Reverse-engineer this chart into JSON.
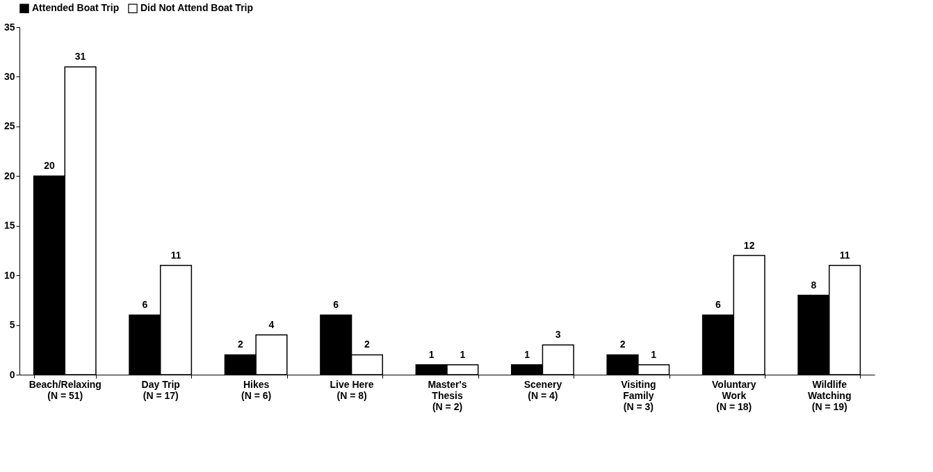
{
  "chart_data": {
    "type": "bar",
    "categories": [
      "Beach/Relaxing\n(N = 51)",
      "Day Trip\n(N = 17)",
      "Hikes\n(N = 6)",
      "Live Here\n(N = 8)",
      "Master's\nThesis\n(N = 2)",
      "Scenery\n(N = 4)",
      "Visiting\nFamily\n(N = 3)",
      "Voluntary\nWork\n(N = 18)",
      "Wildlife\nWatching\n(N = 19)"
    ],
    "series": [
      {
        "name": "Attended Boat Trip",
        "color": "#000000",
        "values": [
          20,
          6,
          2,
          6,
          1,
          1,
          2,
          6,
          8
        ]
      },
      {
        "name": "Did Not Attend Boat Trip",
        "color": "#ffffff",
        "values": [
          31,
          11,
          4,
          2,
          1,
          3,
          1,
          12,
          11
        ]
      }
    ],
    "ylim": [
      0,
      35
    ],
    "yticks": [
      0,
      5,
      10,
      15,
      20,
      25,
      30,
      35
    ],
    "grid": false,
    "legend": "top",
    "data_labels": true
  }
}
